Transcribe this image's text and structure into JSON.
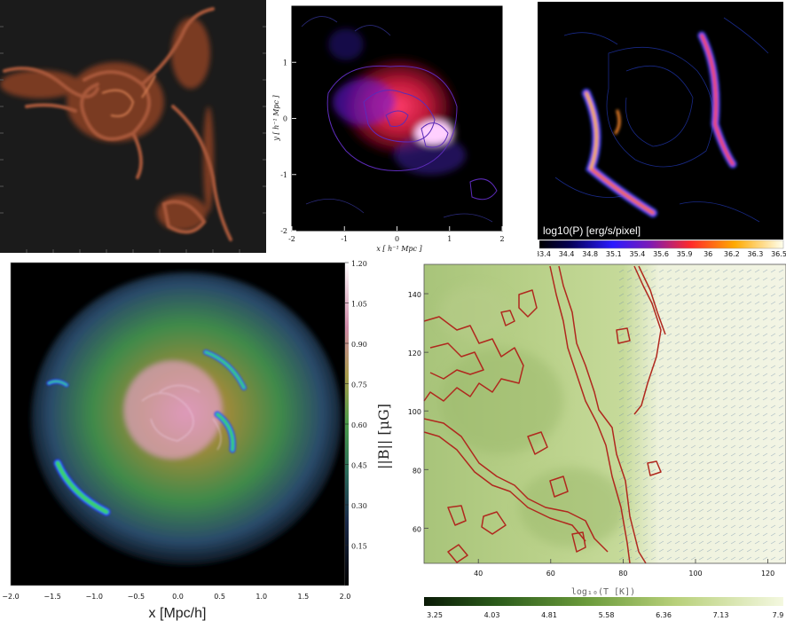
{
  "chart_data": [
    {
      "type": "heatmap",
      "title": "",
      "xlabel": "",
      "ylabel": ""
    },
    {
      "type": "heatmap",
      "xlabel": "x [ h⁻¹ Mpc ]",
      "ylabel": "y [ h⁻¹ Mpc ]",
      "xlim": [
        -2,
        2
      ],
      "ylim": [
        -2,
        2
      ],
      "xticks": [
        "-2",
        "-1",
        "0",
        "1",
        "2"
      ],
      "yticks": [
        "-2",
        "-1",
        "0",
        "1"
      ]
    },
    {
      "type": "heatmap",
      "colorbar_label": "log10(P) [erg/s/pixel]",
      "colorbar_ticks": [
        "33.4",
        "34.4",
        "34.8",
        "35.1",
        "35.4",
        "35.6",
        "35.9",
        "36",
        "36.2",
        "36.3",
        "36.5"
      ]
    },
    {
      "type": "heatmap",
      "xlabel": "x [Mpc/h]",
      "xlim": [
        -2.0,
        2.0
      ],
      "xticks": [
        "−2.0",
        "−1.5",
        "−1.0",
        "−0.5",
        "0.0",
        "0.5",
        "1.0",
        "1.5",
        "2.0"
      ],
      "colorbar_label": "||B|| [μG]",
      "colorbar_range": [
        0,
        1.2
      ],
      "colorbar_ticks": [
        "1.20",
        "1.05",
        "0.90",
        "0.75",
        "0.60",
        "0.45",
        "0.30",
        "0.15"
      ]
    },
    {
      "type": "heatmap",
      "xlim": [
        25,
        125
      ],
      "ylim": [
        48,
        150
      ],
      "xticks": [
        "40",
        "60",
        "80",
        "100",
        "120"
      ],
      "yticks": [
        "140",
        "120",
        "100",
        "80",
        "60"
      ],
      "colorbar_label": "log₁₀(T [K])",
      "colorbar_ticks": [
        "3.25",
        "4.03",
        "4.81",
        "5.58",
        "6.36",
        "7.13",
        "7.9"
      ]
    }
  ],
  "colors": {
    "rust": "#9c4a2e",
    "magenta": "#c8327a",
    "contour_red": "#b0281e",
    "field_green": "#8fb060"
  }
}
